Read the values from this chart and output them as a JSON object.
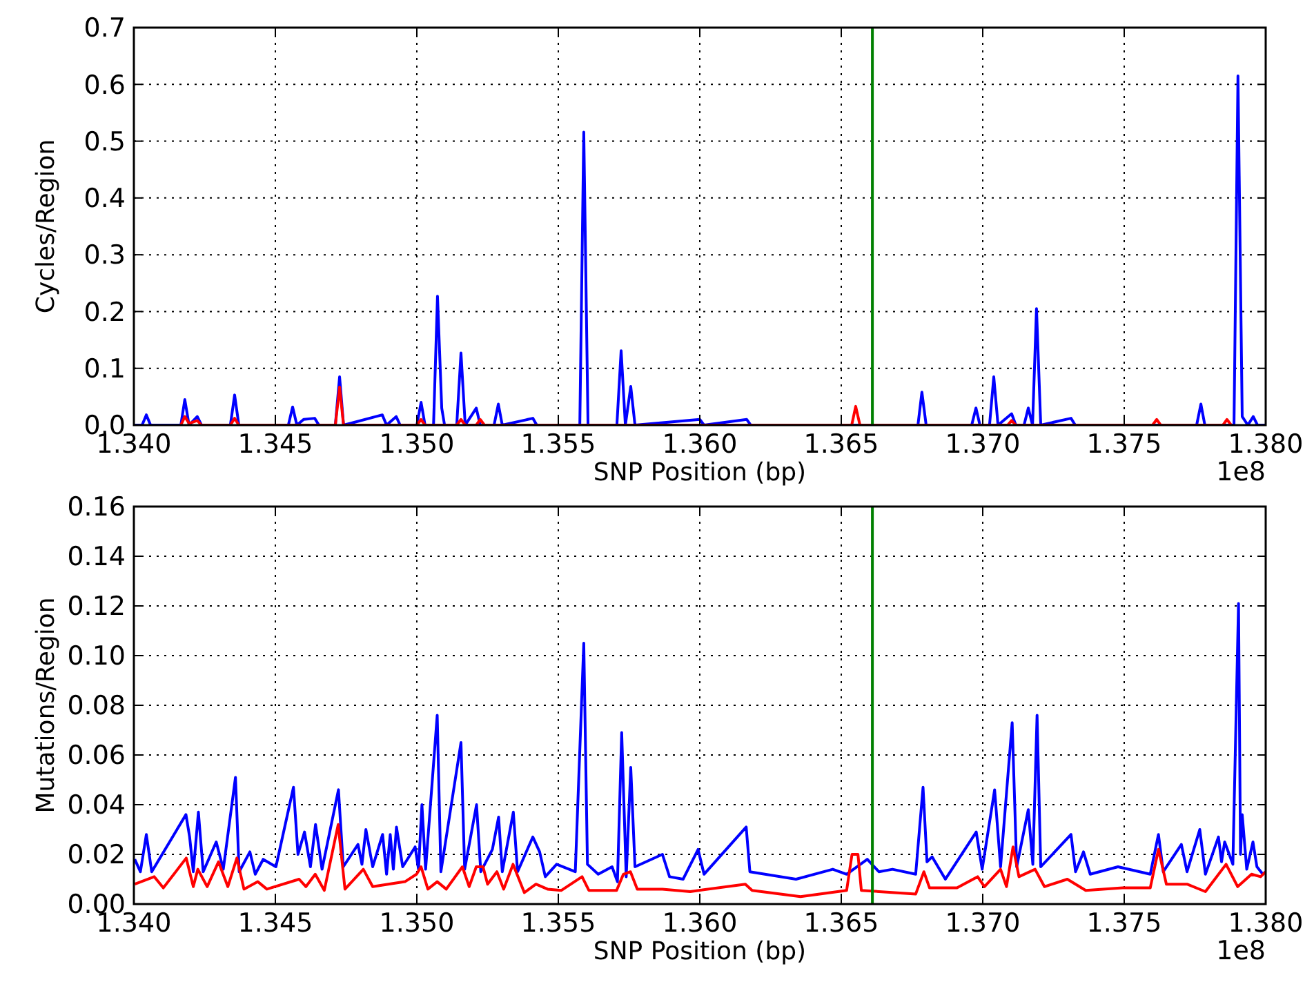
{
  "chart_data": [
    {
      "type": "line",
      "xlabel": "SNP Position (bp)",
      "ylabel": "Cycles/Region",
      "annotations": [
        "1e8"
      ],
      "grid": true,
      "line_style": "solid",
      "marker": "none",
      "xlim": [
        1.34,
        1.38
      ],
      "xticks": [
        {
          "value": 1.34,
          "label": "1.340"
        },
        {
          "value": 1.345,
          "label": "1.345"
        },
        {
          "value": 1.35,
          "label": "1.350"
        },
        {
          "value": 1.355,
          "label": "1.355"
        },
        {
          "value": 1.36,
          "label": "1.360"
        },
        {
          "value": 1.365,
          "label": "1.365"
        },
        {
          "value": 1.37,
          "label": "1.370"
        },
        {
          "value": 1.375,
          "label": "1.375"
        },
        {
          "value": 1.38,
          "label": "1.380"
        }
      ],
      "ylim": [
        0,
        0.7
      ],
      "yticks": [
        {
          "value": 0,
          "label": "0.0"
        },
        0.1,
        0.2,
        0.3,
        0.4,
        0.5,
        0.6,
        0.7
      ],
      "ref_lines": [
        {
          "axis": "x",
          "value": 1.3661,
          "color": "#008000"
        }
      ],
      "series": [
        {
          "color": "#0000ff",
          "x": [
            1.34,
            1.34029,
            1.34044,
            1.34059,
            1.34166,
            1.3418,
            1.34195,
            1.34224,
            1.34239,
            1.34341,
            1.34356,
            1.34371,
            1.34546,
            1.34561,
            1.34576,
            1.346,
            1.34639,
            1.34654,
            1.34712,
            1.34727,
            1.34741,
            1.34878,
            1.34893,
            1.34927,
            1.34941,
            1.35,
            1.35015,
            1.35029,
            1.35059,
            1.35073,
            1.35088,
            1.35098,
            1.35141,
            1.35156,
            1.35171,
            1.3521,
            1.35224,
            1.35273,
            1.35288,
            1.35302,
            1.3541,
            1.35424,
            1.35576,
            1.3559,
            1.35605,
            1.35707,
            1.35722,
            1.35737,
            1.35756,
            1.35771,
            1.36,
            1.36015,
            1.36166,
            1.3618,
            1.36771,
            1.36785,
            1.368,
            1.36961,
            1.36976,
            1.3699,
            1.37024,
            1.37039,
            1.37054,
            1.37102,
            1.37117,
            1.37146,
            1.37161,
            1.37176,
            1.3719,
            1.37205,
            1.37312,
            1.37327,
            1.37756,
            1.37771,
            1.37785,
            1.37888,
            1.37902,
            1.37917,
            1.37937,
            1.37956,
            1.37971,
            1.38
          ],
          "values": [
            0,
            0,
            0.018,
            0,
            0,
            0.045,
            0,
            0.015,
            0,
            0,
            0.053,
            0,
            0,
            0.032,
            0,
            0.01,
            0.012,
            0,
            0,
            0.085,
            0,
            0.018,
            0,
            0.015,
            0,
            0,
            0.04,
            0,
            0,
            0.227,
            0.03,
            0,
            0,
            0.127,
            0,
            0.03,
            0,
            0,
            0.037,
            0,
            0.012,
            0,
            0,
            0.516,
            0,
            0,
            0.131,
            0,
            0.068,
            0,
            0.01,
            0,
            0.01,
            0,
            0,
            0.058,
            0,
            0,
            0.03,
            0,
            0,
            0.085,
            0,
            0.02,
            0,
            0,
            0.03,
            0,
            0.205,
            0,
            0.012,
            0,
            0,
            0.037,
            0,
            0,
            0.615,
            0.015,
            0,
            0.015,
            0,
            0
          ]
        },
        {
          "color": "#ff0000",
          "x": [
            1.34166,
            1.3418,
            1.34195,
            1.34224,
            1.34239,
            1.34341,
            1.34356,
            1.34371,
            1.34712,
            1.34727,
            1.34741,
            1.35,
            1.35015,
            1.35029,
            1.35141,
            1.35156,
            1.35171,
            1.3521,
            1.35224,
            1.35239,
            1.36537,
            1.36551,
            1.36566,
            1.37088,
            1.37102,
            1.37117,
            1.376,
            1.37615,
            1.37629,
            1.37849,
            1.37863,
            1.37878
          ],
          "values": [
            0,
            0.015,
            0.003,
            0.008,
            0,
            0,
            0.012,
            0,
            0,
            0.067,
            0,
            0,
            0.01,
            0,
            0,
            0.01,
            0,
            0,
            0.01,
            0,
            0,
            0.033,
            0,
            0,
            0.008,
            0,
            0,
            0.01,
            0,
            0,
            0.01,
            0
          ]
        }
      ]
    },
    {
      "type": "line",
      "xlabel": "SNP Position (bp)",
      "ylabel": "Mutations/Region",
      "annotations": [
        "1e8"
      ],
      "grid": true,
      "line_style": "solid",
      "marker": "none",
      "xlim": [
        1.34,
        1.38
      ],
      "xticks": [
        {
          "value": 1.34,
          "label": "1.340"
        },
        {
          "value": 1.345,
          "label": "1.345"
        },
        {
          "value": 1.35,
          "label": "1.350"
        },
        {
          "value": 1.355,
          "label": "1.355"
        },
        {
          "value": 1.36,
          "label": "1.360"
        },
        {
          "value": 1.365,
          "label": "1.365"
        },
        {
          "value": 1.37,
          "label": "1.370"
        },
        {
          "value": 1.375,
          "label": "1.375"
        },
        {
          "value": 1.38,
          "label": "1.380"
        }
      ],
      "ylim": [
        0,
        0.16
      ],
      "yticks": [
        {
          "value": 0,
          "label": "0.00"
        },
        {
          "value": 0.02,
          "label": "0.02"
        },
        {
          "value": 0.04,
          "label": "0.04"
        },
        {
          "value": 0.06,
          "label": "0.06"
        },
        {
          "value": 0.08,
          "label": "0.08"
        },
        {
          "value": 0.1,
          "label": "0.10"
        },
        {
          "value": 0.12,
          "label": "0.12"
        },
        {
          "value": 0.14,
          "label": "0.14"
        },
        {
          "value": 0.16,
          "label": "0.16"
        }
      ],
      "ref_lines": [
        {
          "axis": "x",
          "value": 1.3661,
          "color": "#008000"
        }
      ],
      "series": [
        {
          "color": "#0000ff",
          "x": [
            1.34003,
            1.34023,
            1.34044,
            1.34063,
            1.34184,
            1.34197,
            1.3421,
            1.34228,
            1.34245,
            1.34291,
            1.34316,
            1.34359,
            1.34372,
            1.3441,
            1.34429,
            1.34457,
            1.34502,
            1.34564,
            1.3458,
            1.34603,
            1.34624,
            1.34642,
            1.34665,
            1.34723,
            1.3474,
            1.34792,
            1.34806,
            1.3482,
            1.34844,
            1.34879,
            1.34893,
            1.34906,
            1.34917,
            1.34928,
            1.3495,
            1.34994,
            1.35006,
            1.35018,
            1.35031,
            1.35072,
            1.35085,
            1.35156,
            1.35169,
            1.35211,
            1.35226,
            1.35267,
            1.35289,
            1.35302,
            1.35341,
            1.35356,
            1.3541,
            1.35434,
            1.35454,
            1.35494,
            1.3556,
            1.3559,
            1.35603,
            1.35641,
            1.3569,
            1.35709,
            1.35724,
            1.3574,
            1.35756,
            1.35771,
            1.35868,
            1.35893,
            1.35941,
            1.35994,
            1.36015,
            1.36164,
            1.36177,
            1.3634,
            1.3647,
            1.36519,
            1.36592,
            1.36633,
            1.36681,
            1.36763,
            1.36789,
            1.36803,
            1.36821,
            1.36868,
            1.36977,
            1.36998,
            1.37042,
            1.37063,
            1.37104,
            1.3712,
            1.37161,
            1.37177,
            1.37192,
            1.37205,
            1.37312,
            1.37328,
            1.37356,
            1.3738,
            1.37478,
            1.37592,
            1.37621,
            1.37638,
            1.37702,
            1.37722,
            1.37767,
            1.37787,
            1.37833,
            1.37844,
            1.37855,
            1.37884,
            1.37904,
            1.37911,
            1.37917,
            1.37933,
            1.37955,
            1.37969,
            1.3799,
            1.38
          ],
          "values": [
            0.018,
            0.013,
            0.028,
            0.013,
            0.036,
            0.027,
            0.013,
            0.037,
            0.013,
            0.025,
            0.014,
            0.051,
            0.013,
            0.021,
            0.012,
            0.018,
            0.015,
            0.047,
            0.02,
            0.029,
            0.015,
            0.032,
            0.014,
            0.046,
            0.015,
            0.024,
            0.016,
            0.03,
            0.015,
            0.028,
            0.012,
            0.028,
            0.014,
            0.031,
            0.015,
            0.023,
            0.014,
            0.04,
            0.014,
            0.076,
            0.013,
            0.065,
            0.014,
            0.04,
            0.013,
            0.022,
            0.035,
            0.013,
            0.037,
            0.013,
            0.027,
            0.021,
            0.011,
            0.016,
            0.013,
            0.105,
            0.016,
            0.012,
            0.015,
            0.009,
            0.069,
            0.011,
            0.055,
            0.015,
            0.02,
            0.011,
            0.01,
            0.022,
            0.012,
            0.031,
            0.013,
            0.01,
            0.014,
            0.012,
            0.018,
            0.013,
            0.014,
            0.012,
            0.047,
            0.017,
            0.019,
            0.01,
            0.029,
            0.014,
            0.046,
            0.015,
            0.073,
            0.015,
            0.038,
            0.016,
            0.076,
            0.015,
            0.028,
            0.013,
            0.021,
            0.012,
            0.015,
            0.012,
            0.028,
            0.013,
            0.024,
            0.013,
            0.03,
            0.012,
            0.027,
            0.017,
            0.025,
            0.016,
            0.121,
            0.02,
            0.036,
            0.014,
            0.025,
            0.015,
            0.012,
            0.013
          ]
        },
        {
          "color": "#ff0000",
          "x": [
            1.34003,
            1.34072,
            1.34104,
            1.34185,
            1.3421,
            1.34226,
            1.34259,
            1.34299,
            1.34332,
            1.34364,
            1.34389,
            1.34438,
            1.3447,
            1.34584,
            1.34608,
            1.34641,
            1.34673,
            1.34722,
            1.34746,
            1.34811,
            1.34844,
            1.34958,
            1.34999,
            1.35015,
            1.35039,
            1.35072,
            1.35104,
            1.35161,
            1.35185,
            1.3521,
            1.35234,
            1.3525,
            1.35283,
            1.35307,
            1.3534,
            1.3538,
            1.35421,
            1.35462,
            1.35511,
            1.35584,
            1.35608,
            1.35706,
            1.3573,
            1.35755,
            1.35779,
            1.35868,
            1.35966,
            1.36161,
            1.36185,
            1.36356,
            1.36519,
            1.36538,
            1.36559,
            1.36571,
            1.36763,
            1.36792,
            1.36812,
            1.36909,
            1.36982,
            1.37006,
            1.37063,
            1.37084,
            1.37107,
            1.37128,
            1.37185,
            1.37218,
            1.37299,
            1.37364,
            1.37494,
            1.37592,
            1.37621,
            1.37649,
            1.37722,
            1.37787,
            1.3786,
            1.37901,
            1.3795,
            1.37982,
            1.38
          ],
          "values": [
            0.008,
            0.011,
            0.0065,
            0.0185,
            0.007,
            0.014,
            0.007,
            0.017,
            0.007,
            0.0185,
            0.006,
            0.009,
            0.006,
            0.01,
            0.007,
            0.012,
            0.0055,
            0.032,
            0.006,
            0.014,
            0.007,
            0.009,
            0.012,
            0.015,
            0.006,
            0.009,
            0.006,
            0.015,
            0.007,
            0.015,
            0.015,
            0.008,
            0.013,
            0.006,
            0.016,
            0.0046,
            0.008,
            0.006,
            0.0055,
            0.011,
            0.0055,
            0.0055,
            0.012,
            0.013,
            0.006,
            0.006,
            0.005,
            0.008,
            0.0055,
            0.003,
            0.0055,
            0.02,
            0.02,
            0.0055,
            0.004,
            0.013,
            0.0065,
            0.0065,
            0.011,
            0.007,
            0.014,
            0.007,
            0.023,
            0.011,
            0.014,
            0.007,
            0.01,
            0.0055,
            0.0065,
            0.0065,
            0.022,
            0.008,
            0.008,
            0.005,
            0.016,
            0.007,
            0.012,
            0.011,
            0.013
          ]
        }
      ]
    }
  ]
}
